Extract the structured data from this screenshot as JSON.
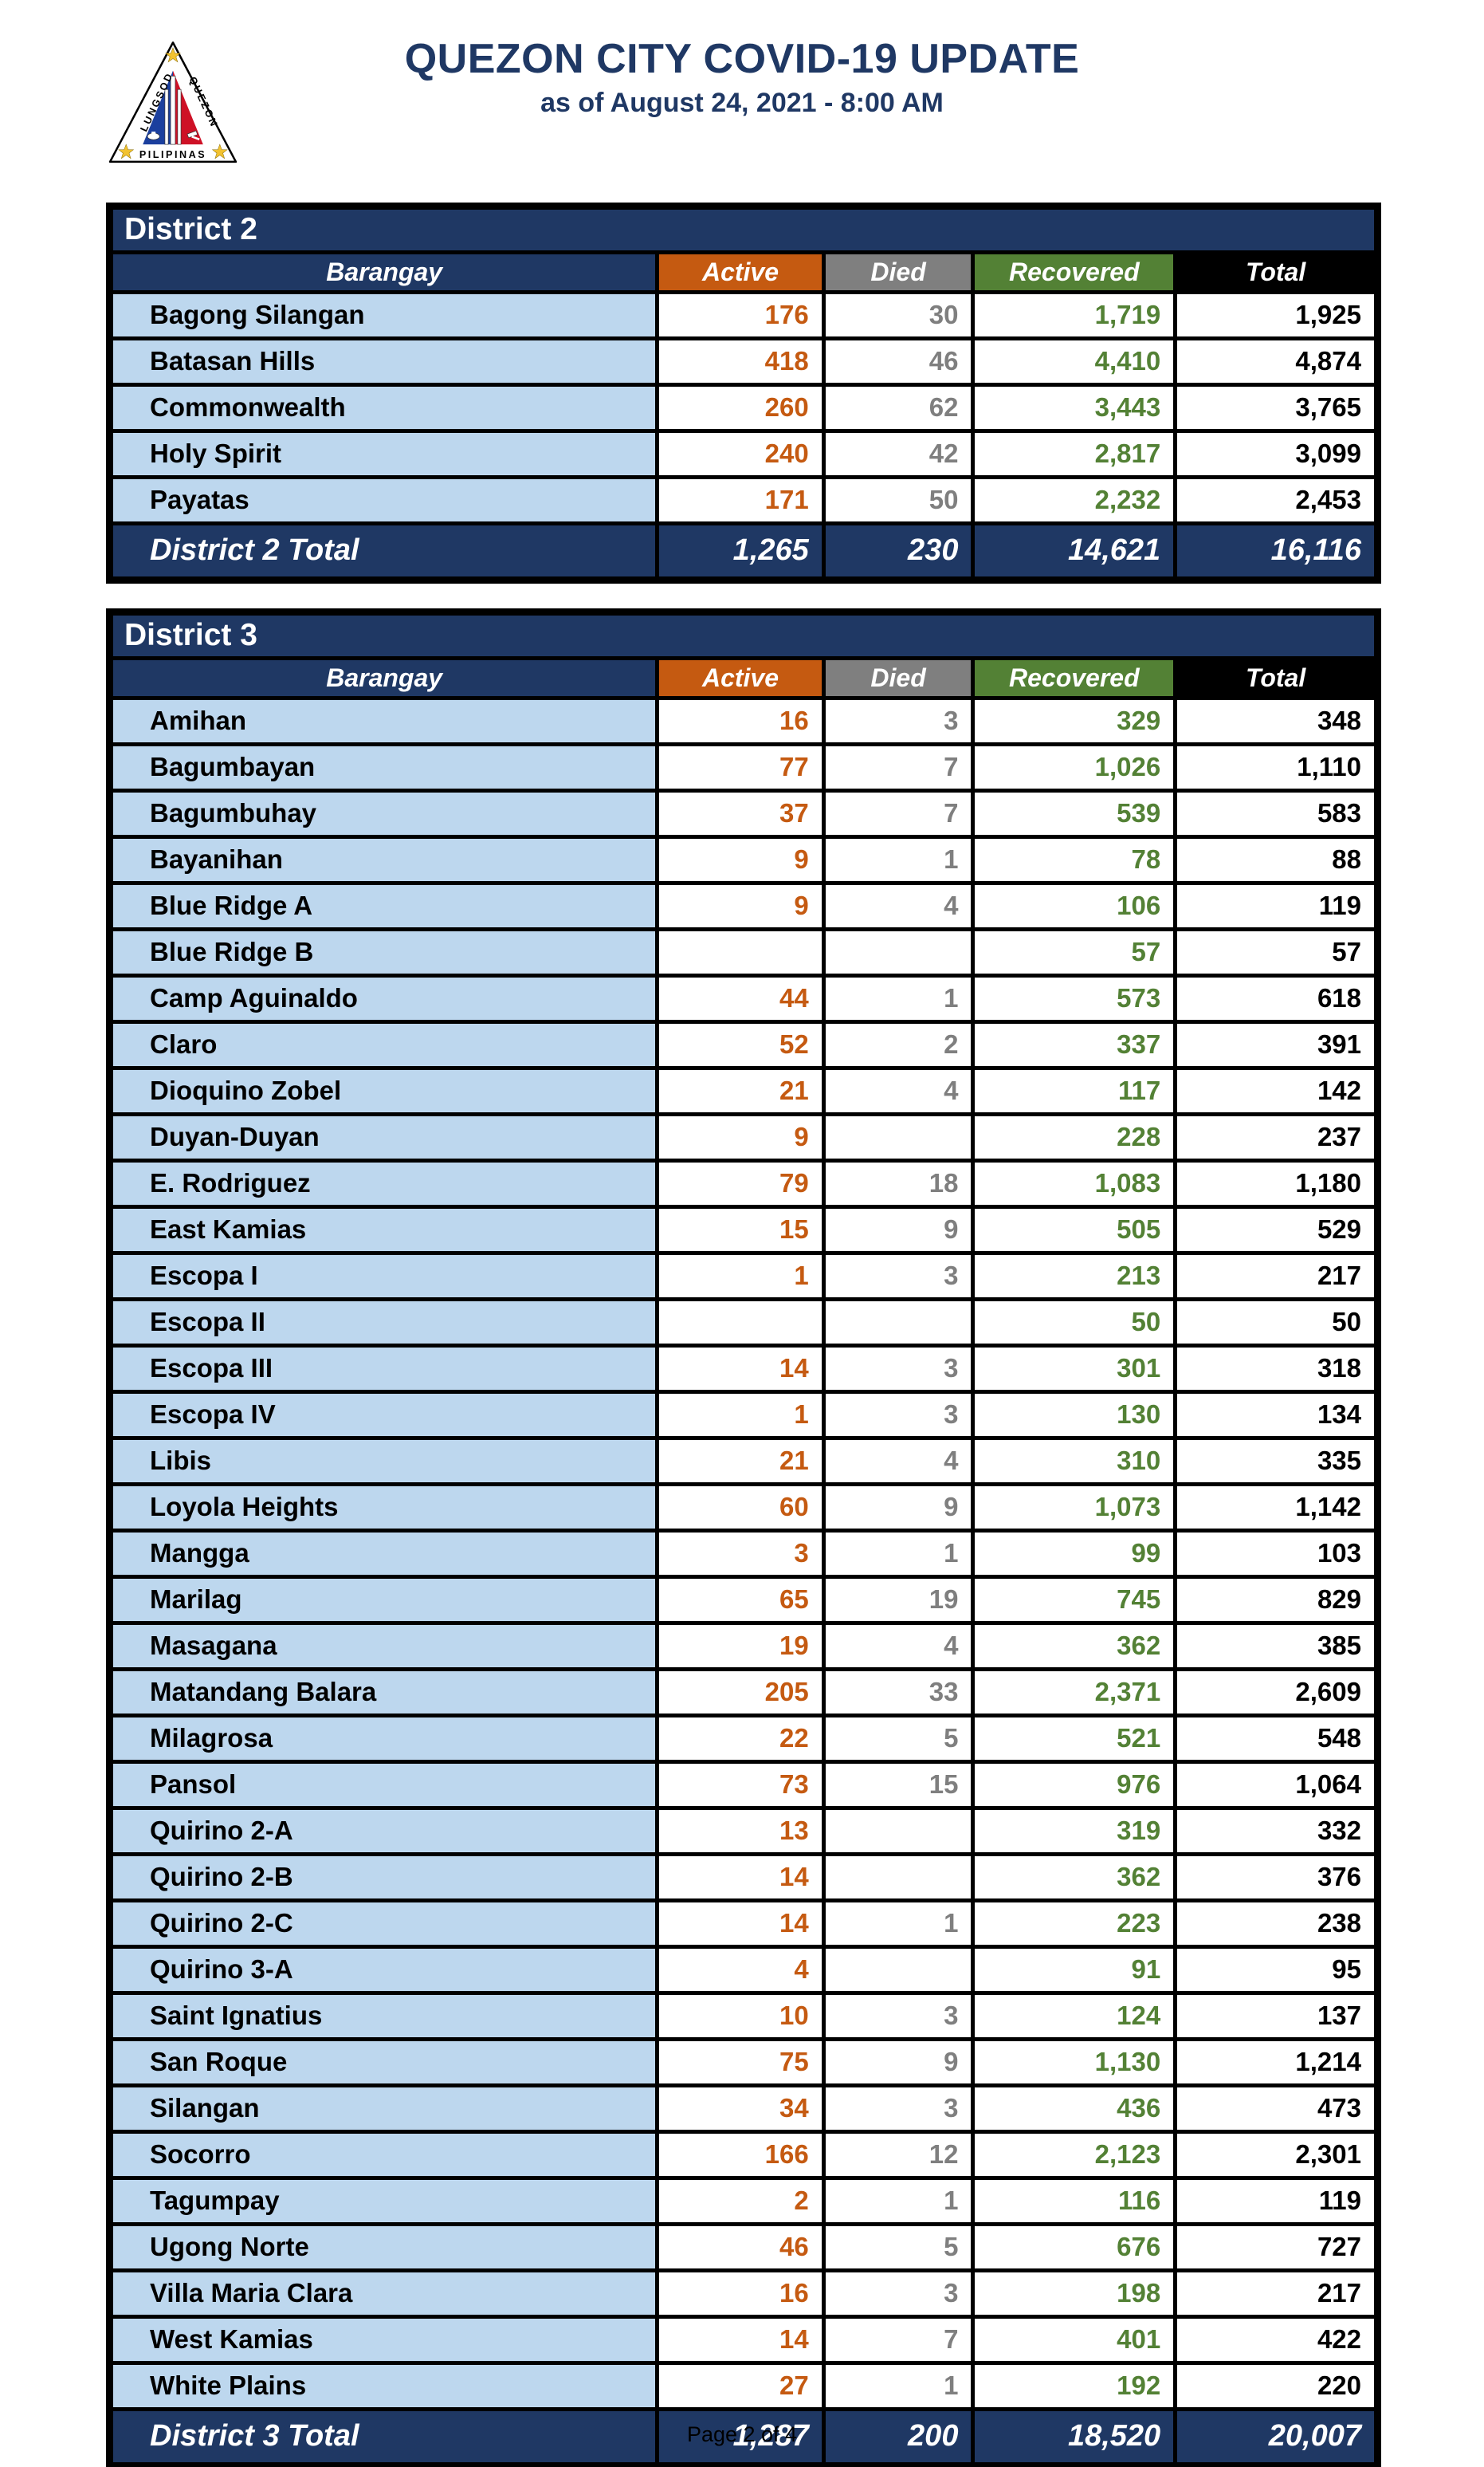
{
  "header": {
    "title": "QUEZON CITY COVID-19 UPDATE",
    "subtitle": "as of August 24, 2021 - 8:00 AM",
    "logo": {
      "left_text": "LUNGSOD",
      "right_text": "QUEZON",
      "bottom_text": "PILIPINAS"
    }
  },
  "columns": [
    "Barangay",
    "Active",
    "Died",
    "Recovered",
    "Total"
  ],
  "colors": {
    "navy": "#1F3864",
    "light_blue_row": "#BDD7EE",
    "active_orange": "#C55A11",
    "died_gray": "#7F7F7F",
    "recovered_green": "#538135",
    "total_black": "#000000"
  },
  "tables": [
    {
      "name": "District 2",
      "rows": [
        {
          "barangay": "Bagong Silangan",
          "active": "176",
          "died": "30",
          "recovered": "1,719",
          "total": "1,925"
        },
        {
          "barangay": "Batasan Hills",
          "active": "418",
          "died": "46",
          "recovered": "4,410",
          "total": "4,874"
        },
        {
          "barangay": "Commonwealth",
          "active": "260",
          "died": "62",
          "recovered": "3,443",
          "total": "3,765"
        },
        {
          "barangay": "Holy Spirit",
          "active": "240",
          "died": "42",
          "recovered": "2,817",
          "total": "3,099"
        },
        {
          "barangay": "Payatas",
          "active": "171",
          "died": "50",
          "recovered": "2,232",
          "total": "2,453"
        }
      ],
      "total": {
        "label": "District 2 Total",
        "active": "1,265",
        "died": "230",
        "recovered": "14,621",
        "total": "16,116"
      }
    },
    {
      "name": "District 3",
      "rows": [
        {
          "barangay": "Amihan",
          "active": "16",
          "died": "3",
          "recovered": "329",
          "total": "348"
        },
        {
          "barangay": "Bagumbayan",
          "active": "77",
          "died": "7",
          "recovered": "1,026",
          "total": "1,110"
        },
        {
          "barangay": "Bagumbuhay",
          "active": "37",
          "died": "7",
          "recovered": "539",
          "total": "583"
        },
        {
          "barangay": "Bayanihan",
          "active": "9",
          "died": "1",
          "recovered": "78",
          "total": "88"
        },
        {
          "barangay": "Blue Ridge A",
          "active": "9",
          "died": "4",
          "recovered": "106",
          "total": "119"
        },
        {
          "barangay": "Blue Ridge B",
          "active": "",
          "died": "",
          "recovered": "57",
          "total": "57"
        },
        {
          "barangay": "Camp Aguinaldo",
          "active": "44",
          "died": "1",
          "recovered": "573",
          "total": "618"
        },
        {
          "barangay": "Claro",
          "active": "52",
          "died": "2",
          "recovered": "337",
          "total": "391"
        },
        {
          "barangay": "Dioquino Zobel",
          "active": "21",
          "died": "4",
          "recovered": "117",
          "total": "142"
        },
        {
          "barangay": "Duyan-Duyan",
          "active": "9",
          "died": "",
          "recovered": "228",
          "total": "237"
        },
        {
          "barangay": "E. Rodriguez",
          "active": "79",
          "died": "18",
          "recovered": "1,083",
          "total": "1,180"
        },
        {
          "barangay": "East Kamias",
          "active": "15",
          "died": "9",
          "recovered": "505",
          "total": "529"
        },
        {
          "barangay": "Escopa I",
          "active": "1",
          "died": "3",
          "recovered": "213",
          "total": "217"
        },
        {
          "barangay": "Escopa II",
          "active": "",
          "died": "",
          "recovered": "50",
          "total": "50"
        },
        {
          "barangay": "Escopa III",
          "active": "14",
          "died": "3",
          "recovered": "301",
          "total": "318"
        },
        {
          "barangay": "Escopa IV",
          "active": "1",
          "died": "3",
          "recovered": "130",
          "total": "134"
        },
        {
          "barangay": "Libis",
          "active": "21",
          "died": "4",
          "recovered": "310",
          "total": "335"
        },
        {
          "barangay": "Loyola Heights",
          "active": "60",
          "died": "9",
          "recovered": "1,073",
          "total": "1,142"
        },
        {
          "barangay": "Mangga",
          "active": "3",
          "died": "1",
          "recovered": "99",
          "total": "103"
        },
        {
          "barangay": "Marilag",
          "active": "65",
          "died": "19",
          "recovered": "745",
          "total": "829"
        },
        {
          "barangay": "Masagana",
          "active": "19",
          "died": "4",
          "recovered": "362",
          "total": "385"
        },
        {
          "barangay": "Matandang Balara",
          "active": "205",
          "died": "33",
          "recovered": "2,371",
          "total": "2,609"
        },
        {
          "barangay": "Milagrosa",
          "active": "22",
          "died": "5",
          "recovered": "521",
          "total": "548"
        },
        {
          "barangay": "Pansol",
          "active": "73",
          "died": "15",
          "recovered": "976",
          "total": "1,064"
        },
        {
          "barangay": "Quirino 2-A",
          "active": "13",
          "died": "",
          "recovered": "319",
          "total": "332"
        },
        {
          "barangay": "Quirino 2-B",
          "active": "14",
          "died": "",
          "recovered": "362",
          "total": "376"
        },
        {
          "barangay": "Quirino 2-C",
          "active": "14",
          "died": "1",
          "recovered": "223",
          "total": "238"
        },
        {
          "barangay": "Quirino 3-A",
          "active": "4",
          "died": "",
          "recovered": "91",
          "total": "95"
        },
        {
          "barangay": "Saint Ignatius",
          "active": "10",
          "died": "3",
          "recovered": "124",
          "total": "137"
        },
        {
          "barangay": "San Roque",
          "active": "75",
          "died": "9",
          "recovered": "1,130",
          "total": "1,214"
        },
        {
          "barangay": "Silangan",
          "active": "34",
          "died": "3",
          "recovered": "436",
          "total": "473"
        },
        {
          "barangay": "Socorro",
          "active": "166",
          "died": "12",
          "recovered": "2,123",
          "total": "2,301"
        },
        {
          "barangay": "Tagumpay",
          "active": "2",
          "died": "1",
          "recovered": "116",
          "total": "119"
        },
        {
          "barangay": "Ugong Norte",
          "active": "46",
          "died": "5",
          "recovered": "676",
          "total": "727"
        },
        {
          "barangay": "Villa Maria Clara",
          "active": "16",
          "died": "3",
          "recovered": "198",
          "total": "217"
        },
        {
          "barangay": "West Kamias",
          "active": "14",
          "died": "7",
          "recovered": "401",
          "total": "422"
        },
        {
          "barangay": "White Plains",
          "active": "27",
          "died": "1",
          "recovered": "192",
          "total": "220"
        }
      ],
      "total": {
        "label": "District 3 Total",
        "active": "1,287",
        "died": "200",
        "recovered": "18,520",
        "total": "20,007"
      }
    }
  ],
  "footer": "Page 2 of 4"
}
